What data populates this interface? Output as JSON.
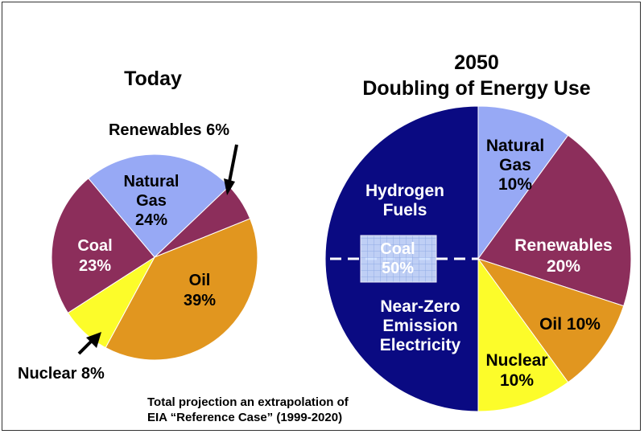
{
  "colors": {
    "natural_gas": "#97A9F5",
    "coal": "#8C2E5B",
    "oil": "#E1961F",
    "nuclear": "#FCFC2A",
    "renewables": "#8C2E5B",
    "hydrogen": "#0A0A82",
    "label_light": "#ffffff",
    "label_dark": "#000000"
  },
  "chart_data": [
    {
      "type": "pie",
      "title": "Today",
      "slices": [
        {
          "label": "Natural Gas",
          "lines": [
            "Natural",
            "Gas",
            "24%"
          ],
          "value": 24,
          "color_key": "natural_gas"
        },
        {
          "label": "Renewables",
          "lines": [
            "Renewables 6%"
          ],
          "value": 6,
          "color_key": "renewables"
        },
        {
          "label": "Oil",
          "lines": [
            "Oil",
            "39%"
          ],
          "value": 39,
          "color_key": "oil"
        },
        {
          "label": "Nuclear",
          "lines": [
            "Nuclear 8%"
          ],
          "value": 8,
          "color_key": "nuclear"
        },
        {
          "label": "Coal",
          "lines": [
            "Coal",
            "23%"
          ],
          "value": 23,
          "color_key": "coal"
        }
      ]
    },
    {
      "type": "pie",
      "title_lines": [
        "2050",
        "Doubling of Energy Use"
      ],
      "slices": [
        {
          "label": "Natural Gas",
          "lines": [
            "Natural",
            "Gas",
            "10%"
          ],
          "value": 10,
          "color_key": "natural_gas"
        },
        {
          "label": "Renewables",
          "lines": [
            "Renewables",
            "20%"
          ],
          "value": 20,
          "color_key": "renewables"
        },
        {
          "label": "Oil",
          "lines": [
            "Oil 10%"
          ],
          "value": 10,
          "color_key": "oil"
        },
        {
          "label": "Nuclear",
          "lines": [
            "Nuclear",
            "10%"
          ],
          "value": 10,
          "color_key": "nuclear"
        },
        {
          "label": "Hydrogen Fuels / Near-Zero Emission Electricity",
          "lines_top": [
            "Hydrogen",
            "Fuels"
          ],
          "lines_bottom": [
            "Near-Zero",
            "Emission",
            "Electricity"
          ],
          "value": 50,
          "color_key": "hydrogen",
          "inner_label": [
            "Coal",
            "50%"
          ]
        }
      ]
    }
  ],
  "footnote": [
    "Total projection an extrapolation of",
    "EIA “Reference Case” (1999-2020)"
  ]
}
